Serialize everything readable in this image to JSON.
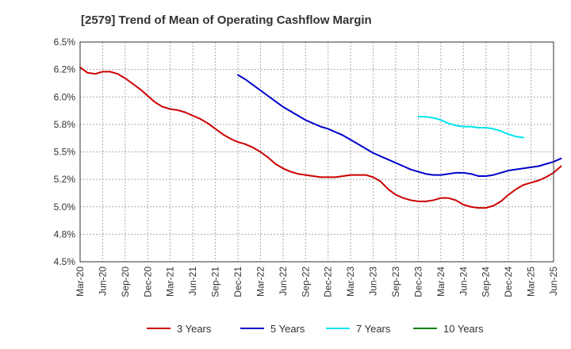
{
  "chart_data": {
    "type": "line",
    "title": "[2579]  Trend of Mean of Operating Cashflow Margin",
    "xlabel": "",
    "ylabel": "",
    "ylim": [
      4.5,
      6.5
    ],
    "y_ticks": [
      4.5,
      4.75,
      5.0,
      5.25,
      5.5,
      5.75,
      6.0,
      6.25,
      6.5
    ],
    "y_tick_labels": [
      "4.5%",
      "4.8%",
      "5.0%",
      "5.2%",
      "5.5%",
      "5.8%",
      "6.0%",
      "6.2%",
      "6.5%"
    ],
    "x_tick_labels": [
      "Mar-20",
      "Jun-20",
      "Sep-20",
      "Dec-20",
      "Mar-21",
      "Jun-21",
      "Sep-21",
      "Dec-21",
      "Mar-22",
      "Jun-22",
      "Sep-22",
      "Dec-22",
      "Mar-23",
      "Jun-23",
      "Sep-23",
      "Dec-23",
      "Mar-24",
      "Jun-24",
      "Sep-24",
      "Dec-24",
      "Mar-25",
      "Jun-25"
    ],
    "grid": true,
    "legend_position": "bottom",
    "series": [
      {
        "name": "3 Years",
        "color": "#cc0000",
        "start": "Mar-20",
        "values": [
          6.27,
          6.22,
          6.21,
          6.23,
          6.23,
          6.21,
          6.17,
          6.12,
          6.07,
          6.01,
          5.95,
          5.91,
          5.89,
          5.88,
          5.86,
          5.83,
          5.8,
          5.76,
          5.71,
          5.66,
          5.62,
          5.59,
          5.57,
          5.54,
          5.5,
          5.45,
          5.39,
          5.35,
          5.32,
          5.3,
          5.29,
          5.28,
          5.27,
          5.27,
          5.27,
          5.28,
          5.29,
          5.29,
          5.29,
          5.27,
          5.23,
          5.16,
          5.11,
          5.08,
          5.06,
          5.05,
          5.05,
          5.06,
          5.08,
          5.08,
          5.06,
          5.02,
          5.0,
          4.99,
          4.99,
          5.01,
          5.05,
          5.11,
          5.16,
          5.2,
          5.22,
          5.24,
          5.27,
          5.31,
          5.37
        ]
      },
      {
        "name": "5 Years",
        "color": "#0000cc",
        "start": "Dec-21",
        "values": [
          6.2,
          6.16,
          6.11,
          6.06,
          6.01,
          5.96,
          5.91,
          5.87,
          5.83,
          5.79,
          5.76,
          5.73,
          5.71,
          5.68,
          5.65,
          5.61,
          5.57,
          5.53,
          5.49,
          5.46,
          5.43,
          5.4,
          5.37,
          5.34,
          5.32,
          5.3,
          5.29,
          5.29,
          5.3,
          5.31,
          5.31,
          5.3,
          5.28,
          5.28,
          5.29,
          5.31,
          5.33,
          5.34,
          5.35,
          5.36,
          5.37,
          5.39,
          5.41,
          5.44
        ]
      },
      {
        "name": "7 Years",
        "color": "#00e5ee",
        "start": "Dec-23",
        "values": [
          5.82,
          5.82,
          5.81,
          5.79,
          5.76,
          5.74,
          5.73,
          5.73,
          5.72,
          5.72,
          5.71,
          5.69,
          5.66,
          5.64,
          5.63
        ]
      },
      {
        "name": "10 Years",
        "color": "#008000",
        "start": "Mar-25",
        "values": []
      }
    ]
  }
}
